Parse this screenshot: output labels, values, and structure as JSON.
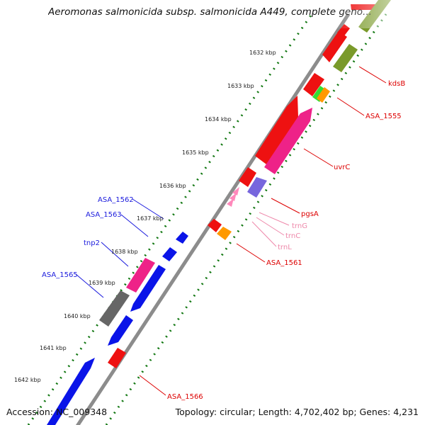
{
  "header": {
    "title": "Aeromonas salmonicida subsp. salmonicida A449, complete geno..."
  },
  "footer": {
    "accession": "Accession: NC_009348",
    "summary": "Topology: circular; Length: 4,702,402 bp; Genes: 4,231"
  },
  "scale": {
    "ticks": [
      "1632 kbp",
      "1633 kbp",
      "1634 kbp",
      "1635 kbp",
      "1636 kbp",
      "1637 kbp",
      "1638 kbp",
      "1639 kbp",
      "1640 kbp",
      "1641 kbp",
      "1642 kbp"
    ]
  },
  "colors": {
    "backbone": "#8c8c8c",
    "cds": "#ee1111",
    "olive": "#7a9a2a",
    "pink": "#ee2288",
    "blue": "#0a14e8",
    "gray_gene": "#666666",
    "orange": "#ff9900",
    "green": "#33dd33",
    "purple": "#7766dd",
    "trna": "#ff88bb",
    "tick": "#117711",
    "label_red": "#dd0000",
    "label_blue": "#1a1add",
    "label_pink": "#ee88aa"
  },
  "labels": {
    "right": [
      {
        "name": "kdsB",
        "color": "red"
      },
      {
        "name": "ASA_1555",
        "color": "red"
      },
      {
        "name": "uvrC",
        "color": "red"
      },
      {
        "name": "pgsA",
        "color": "red"
      },
      {
        "name": "trnG",
        "color": "pink"
      },
      {
        "name": "trnC",
        "color": "pink"
      },
      {
        "name": "trnL",
        "color": "pink"
      },
      {
        "name": "ASA_1561",
        "color": "red"
      },
      {
        "name": "ASA_1566",
        "color": "red"
      }
    ],
    "left": [
      {
        "name": "ASA_1562",
        "color": "blue"
      },
      {
        "name": "ASA_1563",
        "color": "blue"
      },
      {
        "name": "tnp2",
        "color": "blue"
      },
      {
        "name": "ASA_1565",
        "color": "blue"
      }
    ]
  }
}
